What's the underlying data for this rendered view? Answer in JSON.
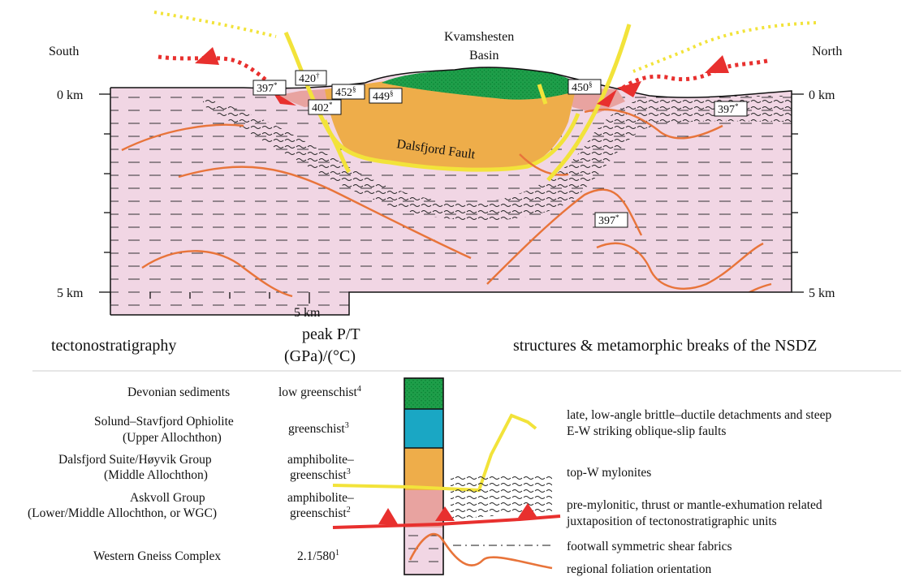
{
  "section": {
    "south": "South",
    "north": "North",
    "basin_line1": "Kvamshesten",
    "basin_line2": "Basin",
    "fault": "Dalsfjord Fault",
    "depth_0_left": "0 km",
    "depth_5_left": "5 km",
    "depth_0_right": "0 km",
    "depth_5_right": "5 km",
    "scale": "5 km",
    "ages": [
      {
        "num": "397",
        "sup": "*"
      },
      {
        "num": "420",
        "sup": "†"
      },
      {
        "num": "452",
        "sup": "§"
      },
      {
        "num": "402",
        "sup": "*"
      },
      {
        "num": "449",
        "sup": "§"
      },
      {
        "num": "450",
        "sup": "§"
      },
      {
        "num": "397",
        "sup": "*"
      },
      {
        "num": "397",
        "sup": "*"
      }
    ]
  },
  "headers": {
    "tectono": "tectonostratigraphy",
    "pt_line1": "peak P/T",
    "pt_line2": "(GPa)/(°C)",
    "structures": "structures & metamorphic breaks of the NSDZ"
  },
  "units": [
    {
      "name1": "Devonian sediments",
      "name2": "",
      "pt1": "low greenschist",
      "pt1_sup": "4",
      "pt2": "",
      "pt2_sup": "",
      "color": "#1f9e4a"
    },
    {
      "name1": "Solund–Stavfjord Ophiolite",
      "name2": "(Upper Allochthon)",
      "pt1": "greenschist",
      "pt1_sup": "3",
      "pt2": "",
      "pt2_sup": "",
      "color": "#1aa7c4"
    },
    {
      "name1": "Dalsfjord Suite/Høyvik Group",
      "name2": "(Middle Allochthon)",
      "pt1": "amphibolite–",
      "pt1_sup": "",
      "pt2": "greenschist",
      "pt2_sup": "3",
      "color": "#eead4a"
    },
    {
      "name1": "Askvoll Group",
      "name2": "(Lower/Middle Allochthon, or WGC)",
      "pt1": "amphibolite–",
      "pt1_sup": "",
      "pt2": "greenschist",
      "pt2_sup": "2",
      "color": "#e8a3a0"
    },
    {
      "name1": "Western Gneiss Complex",
      "name2": "",
      "pt1": "2.1/580",
      "pt1_sup": "1",
      "pt2": "",
      "pt2_sup": "",
      "color": "#f1d6e4"
    }
  ],
  "structures": [
    {
      "line1": "late, low-angle brittle–ductile detachments and steep",
      "line2": "E-W striking oblique-slip faults"
    },
    {
      "line1": "top-W mylonites",
      "line2": ""
    },
    {
      "line1": "pre-mylonitic, thrust or mantle-exhumation related",
      "line2": "juxtaposition of tectonostratigraphic units"
    },
    {
      "line1": "footwall symmetric shear fabrics",
      "line2": ""
    },
    {
      "line1": "regional foliation orientation",
      "line2": ""
    }
  ],
  "colors": {
    "wgc": "#f1d6e4",
    "askvoll": "#e8a3a0",
    "dalsfjord": "#eead4a",
    "ophiolite": "#1aa7c4",
    "devonian": "#1f9e4a",
    "fault": "#f2e33a",
    "foliation": "#e8743a",
    "thrust": "#e8302e"
  }
}
